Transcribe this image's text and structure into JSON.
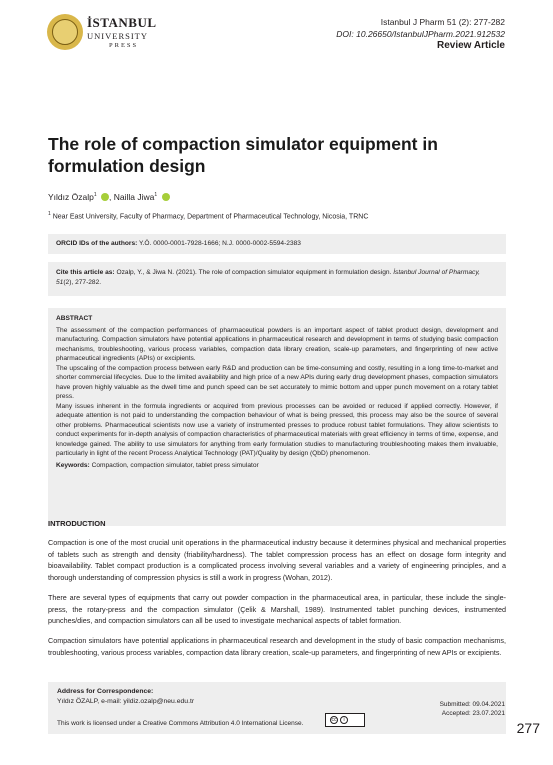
{
  "header": {
    "logo_word1": "İSTANBUL",
    "logo_word2": "UNIVERSITY",
    "logo_word3": "PRESS",
    "journal_citation": "Istanbul J Pharm 51 (2): 277-282",
    "doi": "DOI: 10.26650/IstanbulJPharm.2021.912532",
    "article_type": "Review Article"
  },
  "title": "The role of compaction simulator equipment in formulation design",
  "authors": {
    "author1": "Yıldız Özalp",
    "author1_sup": "1",
    "separator": ", ",
    "author2": "Nailla Jiwa",
    "author2_sup": "1"
  },
  "affiliation": {
    "sup": "1",
    "text": "Near East University, Faculty of Pharmacy, Department of Pharmaceutical Technology, Nicosia, TRNC"
  },
  "orcid": {
    "label": "ORCID IDs of the authors:",
    "text": "Y.Ö. 0000-0001-7928-1666; N.J. 0000-0002-5594-2383"
  },
  "citation": {
    "label": "Cite this article as:",
    "text": "Ozalp, Y., & Jiwa N. (2021). The role of compaction simulator equipment in formulation design.",
    "journal": "İstanbul Journal of Pharmacy, 51",
    "tail": "(2), 277-282."
  },
  "abstract": {
    "heading": "ABSTRACT",
    "para1": "The assessment of the compaction performances of pharmaceutical powders is an important aspect of tablet product design, development and manufacturing. Compaction simulators have potential applications in pharmaceutical research and development in terms of studying basic compaction mechanisms, troubleshooting, various process variables, compaction data library creation, scale-up parameters, and fingerprinting of new active pharmaceutical ingredients (APIs) or excipients.",
    "para2": "The upscaling of the compaction process between early R&D and production can be time-consuming and costly, resulting in a long time-to-market and shorter commercial lifecycles. Due to the limited availability and high price of a new APIs during early drug development phases, compaction simulators have proven highly valuable as the dwell time and punch speed can be set accurately to mimic bottom and upper punch movement on a rotary tablet press.",
    "para3": "Many issues inherent in the formula ingredients or acquired from previous processes can be avoided or reduced if applied correctly. However, if adequate attention is not paid to understanding the compaction behaviour of what is being pressed, this process may also be the source of several other problems. Pharmaceutical scientists now use a variety of instrumented presses to produce robust tablet formulations. They allow scientists to conduct experiments for in-depth analysis of compaction characteristics of pharmaceutical materials with great efficiency in terms of time, expense, and knowledge gained. The ability to use simulators for anything from early formulation studies to manufacturing troubleshooting makes them invaluable, particularly in light of the recent Process Analytical Technology (PAT)/Quality by design (QbD) phenomenon.",
    "keywords_label": "Keywords:",
    "keywords": "Compaction, compaction simulator, tablet press simulator"
  },
  "introduction": {
    "heading": "INTRODUCTION",
    "p1": "Compaction is one of the most crucial unit operations in the pharmaceutical industry because it determines physical and mechanical properties of tablets such as strength and density (friability/hardness). The tablet compression process has an effect on dosage form integrity and bioavailability. Tablet compact production is a complicated process involving several variables and a variety of engineering principles, and a thorough understanding of compression physics is still a work in progress (Wohan, 2012).",
    "p2": "There are several types of equipments that carry out powder compaction in the pharmaceutical area, in particular, these include the single-press, the rotary-press and the compaction simulator (Çelik & Marshall, 1989). Instrumented tablet punching devices, instrumented punches/dies, and compaction simulators can all be used to investigate mechanical aspects of tablet formation.",
    "p3": "Compaction simulators have potential applications in pharmaceutical research and development in the study of basic compaction mechanisms, troubleshooting, various process variables, compaction data library creation, scale-up parameters, and fingerprinting of new APIs or excipients."
  },
  "footer": {
    "corr_heading": "Address for Correspondence:",
    "corr_text": "Yıldız ÖZALP, e-mail: yildiz.ozalp@neu.edu.tr",
    "license": "This work is licensed under a Creative Commons Attribution 4.0 International License.",
    "cc_symbol": "cc",
    "by_symbol": "i",
    "submitted": "Submitted: 09.04.2021",
    "accepted": "Accepted: 23.07.2021"
  },
  "page_number": "277"
}
